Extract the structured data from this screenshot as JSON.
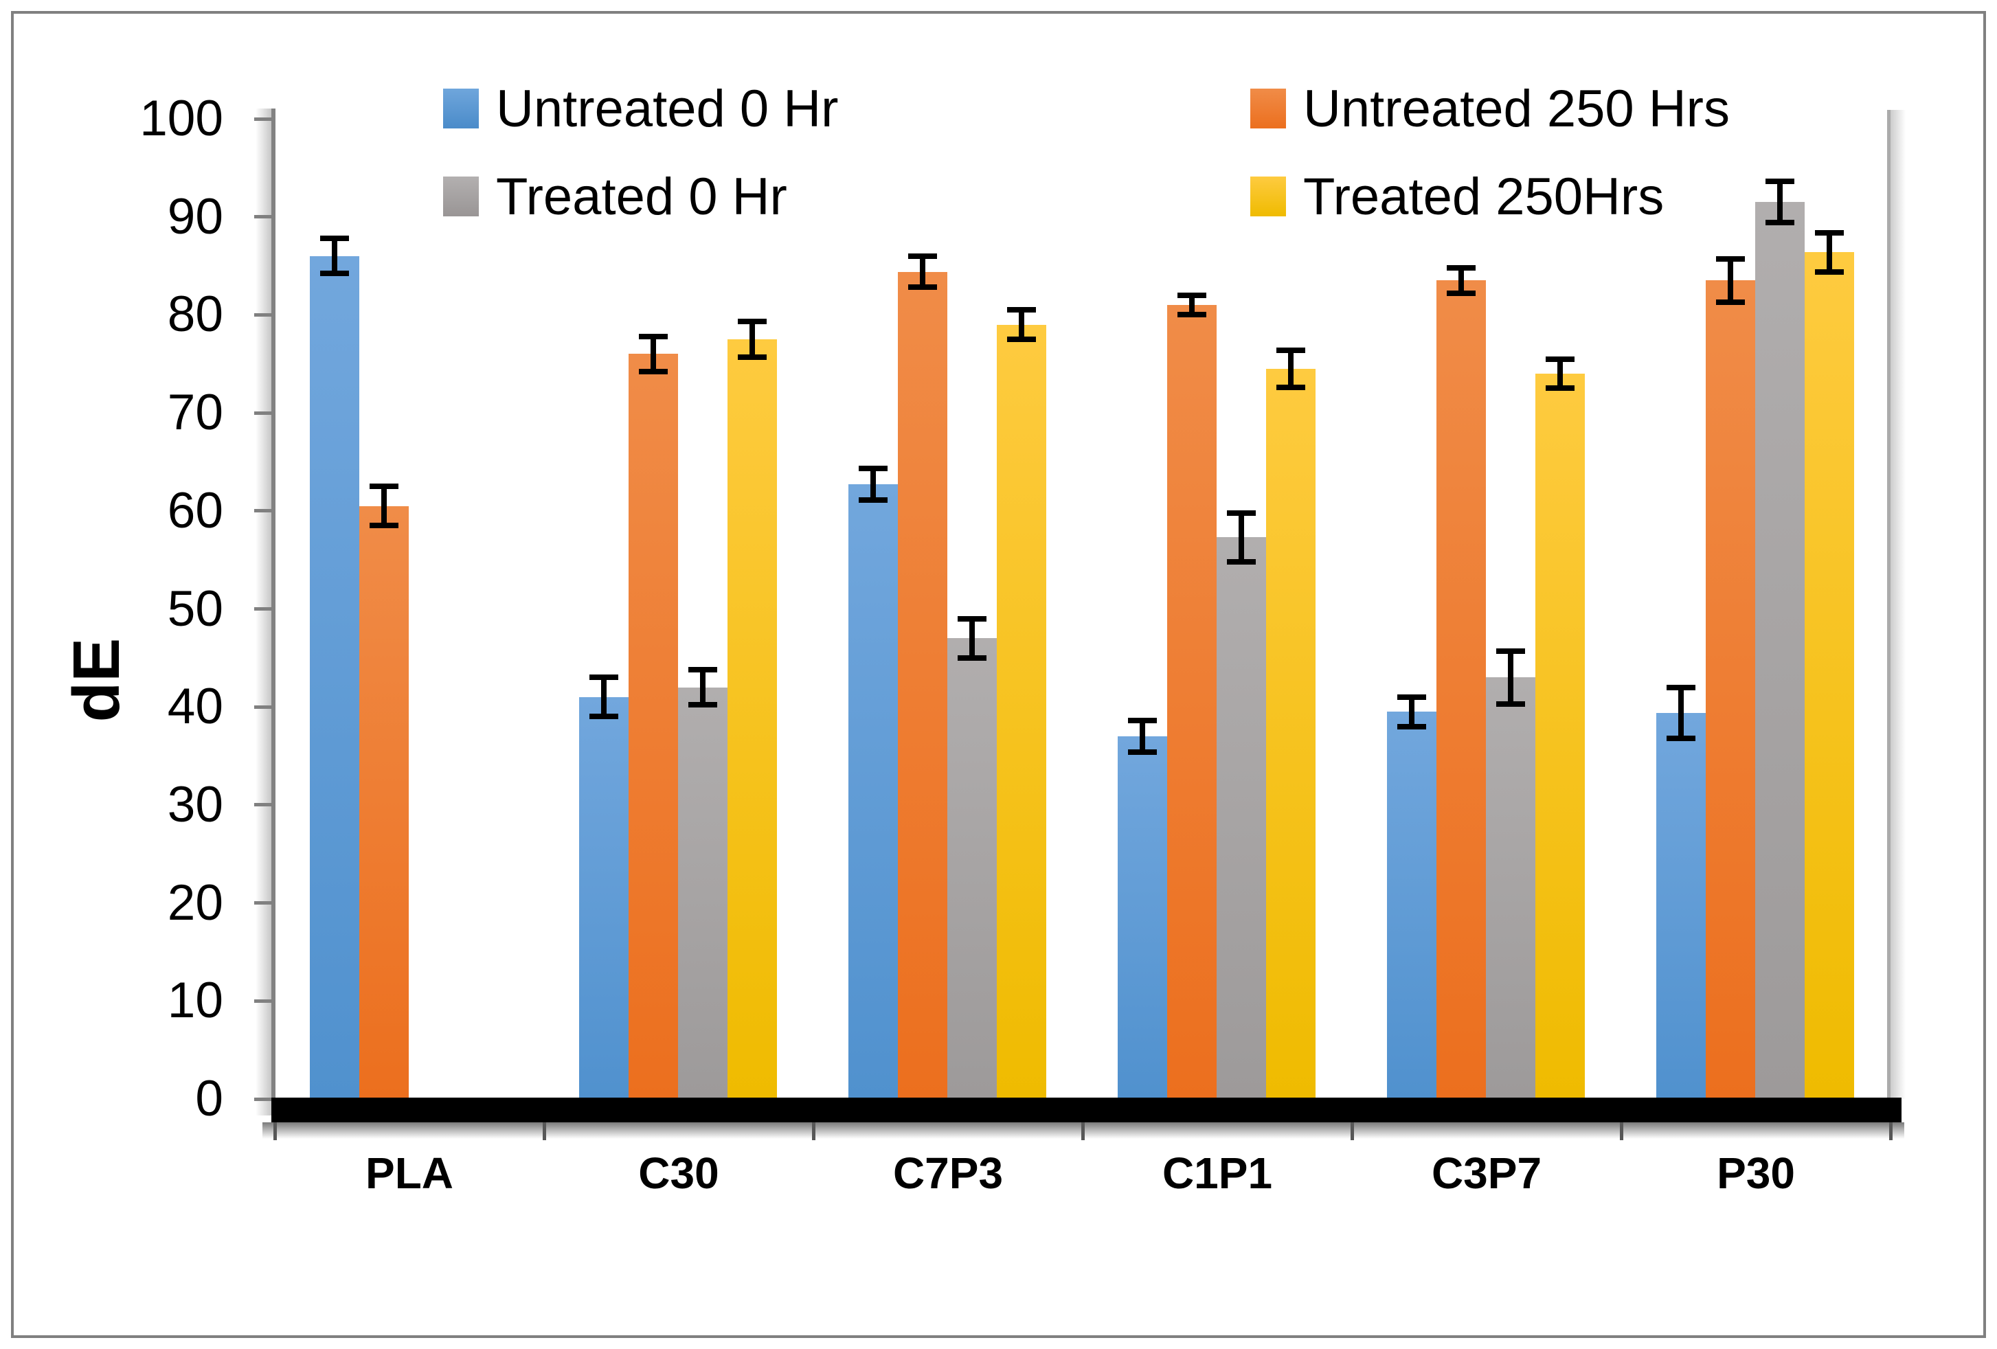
{
  "chart_data": {
    "type": "bar",
    "title": "",
    "ylabel": "dE",
    "xlabel": "",
    "categories": [
      "PLA",
      "C30",
      "C7P3",
      "C1P1",
      "C3P7",
      "P30"
    ],
    "y_ticks": [
      0,
      10,
      20,
      30,
      40,
      50,
      60,
      70,
      80,
      90,
      100
    ],
    "ylim": [
      0,
      100
    ],
    "grid": false,
    "error_bars": true,
    "legend_position": "top",
    "axis_color": "#808080",
    "baseline_color": "#000000",
    "error_bar_color": "#000000",
    "series": [
      {
        "key": "untreated-0hr",
        "name": "Untreated 0 Hr",
        "color": "#5B9BD5",
        "color_top": "#72A7DD",
        "color_bottom": "#5091CE",
        "values": [
          86,
          41,
          62.7,
          37,
          39.5,
          39.4
        ],
        "errors": [
          1.8,
          2,
          1.6,
          1.6,
          1.5,
          2.6
        ]
      },
      {
        "key": "untreated-250hrs",
        "name": "Untreated 250 Hrs",
        "color": "#ED7D31",
        "color_top": "#F08C48",
        "color_bottom": "#EC6F1E",
        "values": [
          60.5,
          76,
          84.4,
          81,
          83.5,
          83.5
        ],
        "errors": [
          2,
          1.8,
          1.6,
          1,
          1.3,
          2.2
        ]
      },
      {
        "key": "treated-0hr",
        "name": "Treated 0 Hr",
        "color": "#A5A5A5",
        "color_top": "#B1AEAE",
        "color_bottom": "#9D9A9A",
        "values": [
          null,
          42,
          47,
          57.3,
          43,
          91.5
        ],
        "errors": [
          null,
          1.8,
          2,
          2.5,
          2.7,
          2.1
        ]
      },
      {
        "key": "treated-250hrs",
        "name": "Treated 250Hrs",
        "color": "#FFC000",
        "color_top": "#FECB40",
        "color_bottom": "#EFBB00",
        "values": [
          null,
          77.5,
          79,
          74.5,
          74,
          86.4
        ],
        "errors": [
          null,
          1.8,
          1.5,
          1.9,
          1.5,
          2
        ]
      }
    ]
  }
}
